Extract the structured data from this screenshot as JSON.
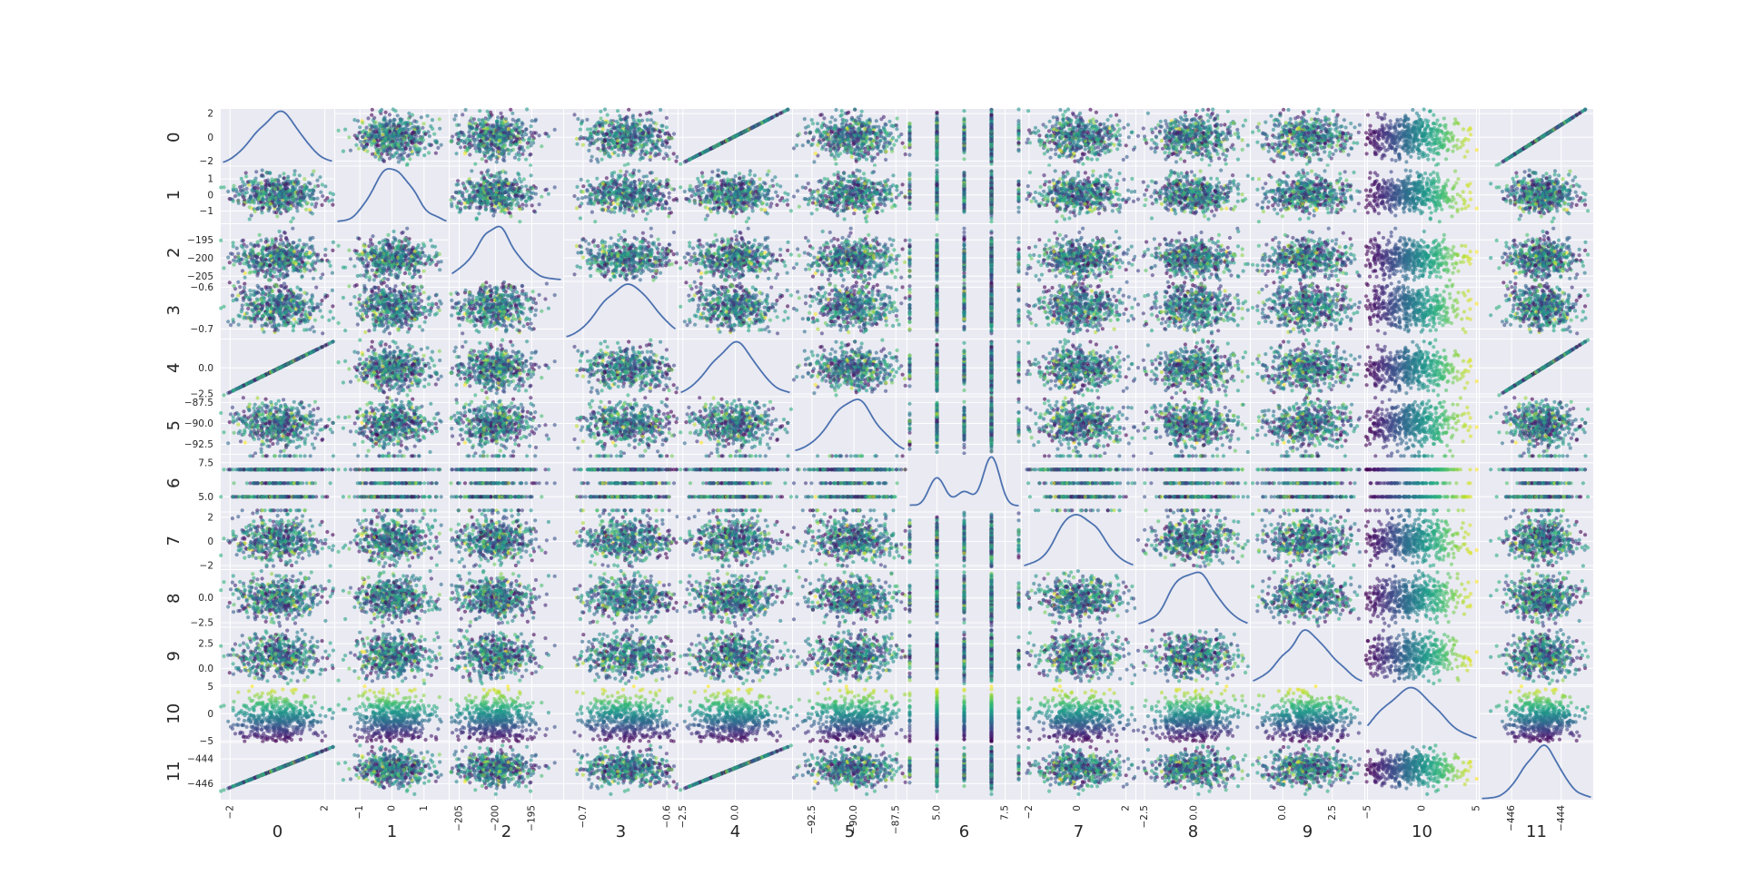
{
  "chart_data": {
    "type": "scatter_matrix",
    "title": "",
    "variables": [
      "0",
      "1",
      "2",
      "3",
      "4",
      "5",
      "6",
      "7",
      "8",
      "9",
      "10",
      "11"
    ],
    "diagonal": "kde",
    "n_points": 500,
    "point_alpha": 0.6,
    "colormap": "viridis",
    "background": "#eaeaf2",
    "grid": true,
    "grid_color": "#ffffff",
    "kde_color": "#4c72b0",
    "ranges": [
      [
        -2.3,
        2.3
      ],
      [
        -1.7,
        1.7
      ],
      [
        -206,
        -191
      ],
      [
        -0.72,
        -0.59
      ],
      [
        -2.6,
        2.6
      ],
      [
        -93.5,
        -87
      ],
      [
        4,
        8
      ],
      [
        -2.2,
        2.3
      ],
      [
        -2.8,
        2.7
      ],
      [
        -1.5,
        4
      ],
      [
        -5,
        5
      ],
      [
        -447.2,
        -442.8
      ]
    ],
    "x_ticks": [
      {
        "values": [
          -2,
          2
        ],
        "labels": [
          "−2",
          "2"
        ]
      },
      {
        "values": [
          -1,
          0,
          1
        ],
        "labels": [
          "−1",
          "0",
          "1"
        ]
      },
      {
        "values": [
          -205,
          -200,
          -195
        ],
        "labels": [
          "−205",
          "−200",
          "−195"
        ]
      },
      {
        "values": [
          -0.7,
          -0.6
        ],
        "labels": [
          "−0.7",
          "−0.6"
        ]
      },
      {
        "values": [
          -2.5,
          0
        ],
        "labels": [
          "−2.5",
          "0.0"
        ]
      },
      {
        "values": [
          -92.5,
          -90,
          -87.5
        ],
        "labels": [
          "−92.5",
          "−90.0",
          "−87.5"
        ]
      },
      {
        "values": [
          5,
          7.5
        ],
        "labels": [
          "5.0",
          "7.5"
        ]
      },
      {
        "values": [
          -2,
          0,
          2
        ],
        "labels": [
          "−2",
          "0",
          "2"
        ]
      },
      {
        "values": [
          -2.5,
          0
        ],
        "labels": [
          "−2.5",
          "0.0"
        ]
      },
      {
        "values": [
          0,
          2.5
        ],
        "labels": [
          "0.0",
          "2.5"
        ]
      },
      {
        "values": [
          -5,
          0,
          5
        ],
        "labels": [
          "−5",
          "0",
          "5"
        ]
      },
      {
        "values": [
          -446,
          -444
        ],
        "labels": [
          "−446",
          "−444"
        ]
      }
    ],
    "y_ticks": [
      {
        "values": [
          -2,
          0,
          2
        ],
        "labels": [
          "−2",
          "0",
          "2"
        ]
      },
      {
        "values": [
          -1,
          0,
          1
        ],
        "labels": [
          "−1",
          "0",
          "1"
        ]
      },
      {
        "values": [
          -205,
          -200,
          -195
        ],
        "labels": [
          "−205",
          "−200",
          "−195"
        ]
      },
      {
        "values": [
          -0.7,
          -0.6
        ],
        "labels": [
          "−0.7",
          "−0.6"
        ]
      },
      {
        "values": [
          -2.5,
          0
        ],
        "labels": [
          "−2.5",
          "0.0"
        ]
      },
      {
        "values": [
          -92.5,
          -90,
          -87.5
        ],
        "labels": [
          "−92.5",
          "−90.0",
          "−87.5"
        ]
      },
      {
        "values": [
          5,
          7.5
        ],
        "labels": [
          "5.0",
          "7.5"
        ]
      },
      {
        "values": [
          -2,
          0,
          2
        ],
        "labels": [
          "−2",
          "0",
          "2"
        ]
      },
      {
        "values": [
          -2.5,
          0
        ],
        "labels": [
          "−2.5",
          "0.0"
        ]
      },
      {
        "values": [
          0,
          2.5
        ],
        "labels": [
          "0.0",
          "2.5"
        ]
      },
      {
        "values": [
          -5,
          0,
          5
        ],
        "labels": [
          "−5",
          "0",
          "5"
        ]
      },
      {
        "values": [
          -446,
          -444
        ],
        "labels": [
          "−446",
          "−444"
        ]
      }
    ],
    "distributions": [
      {
        "kind": "normal",
        "mean": 0,
        "sd": 0.9
      },
      {
        "kind": "normal",
        "mean": 0,
        "sd": 0.55
      },
      {
        "kind": "normal",
        "mean": -200,
        "sd": 2.8
      },
      {
        "kind": "normal",
        "mean": -0.645,
        "sd": 0.027
      },
      {
        "kind": "normal",
        "mean": -0.1,
        "sd": 1.0
      },
      {
        "kind": "normal",
        "mean": -90.1,
        "sd": 1.3
      },
      {
        "kind": "discrete",
        "values": [
          4,
          5,
          6,
          7,
          8
        ],
        "weights": [
          0.02,
          0.3,
          0.2,
          0.45,
          0.03
        ]
      },
      {
        "kind": "normal",
        "mean": 0,
        "sd": 0.85
      },
      {
        "kind": "normal",
        "mean": 0,
        "sd": 1.0
      },
      {
        "kind": "normal",
        "mean": 1.3,
        "sd": 1.1
      },
      {
        "kind": "normal",
        "mean": -1,
        "sd": 2.2
      },
      {
        "kind": "normal",
        "mean": -444.8,
        "sd": 0.85
      }
    ],
    "linear_relations": [
      {
        "target": 4,
        "source": 0,
        "slope": 1.0
      },
      {
        "target": 11,
        "source": 0,
        "slope": 0.8
      }
    ],
    "color_variable_note": "point color maps to column 10 (viridis)"
  }
}
